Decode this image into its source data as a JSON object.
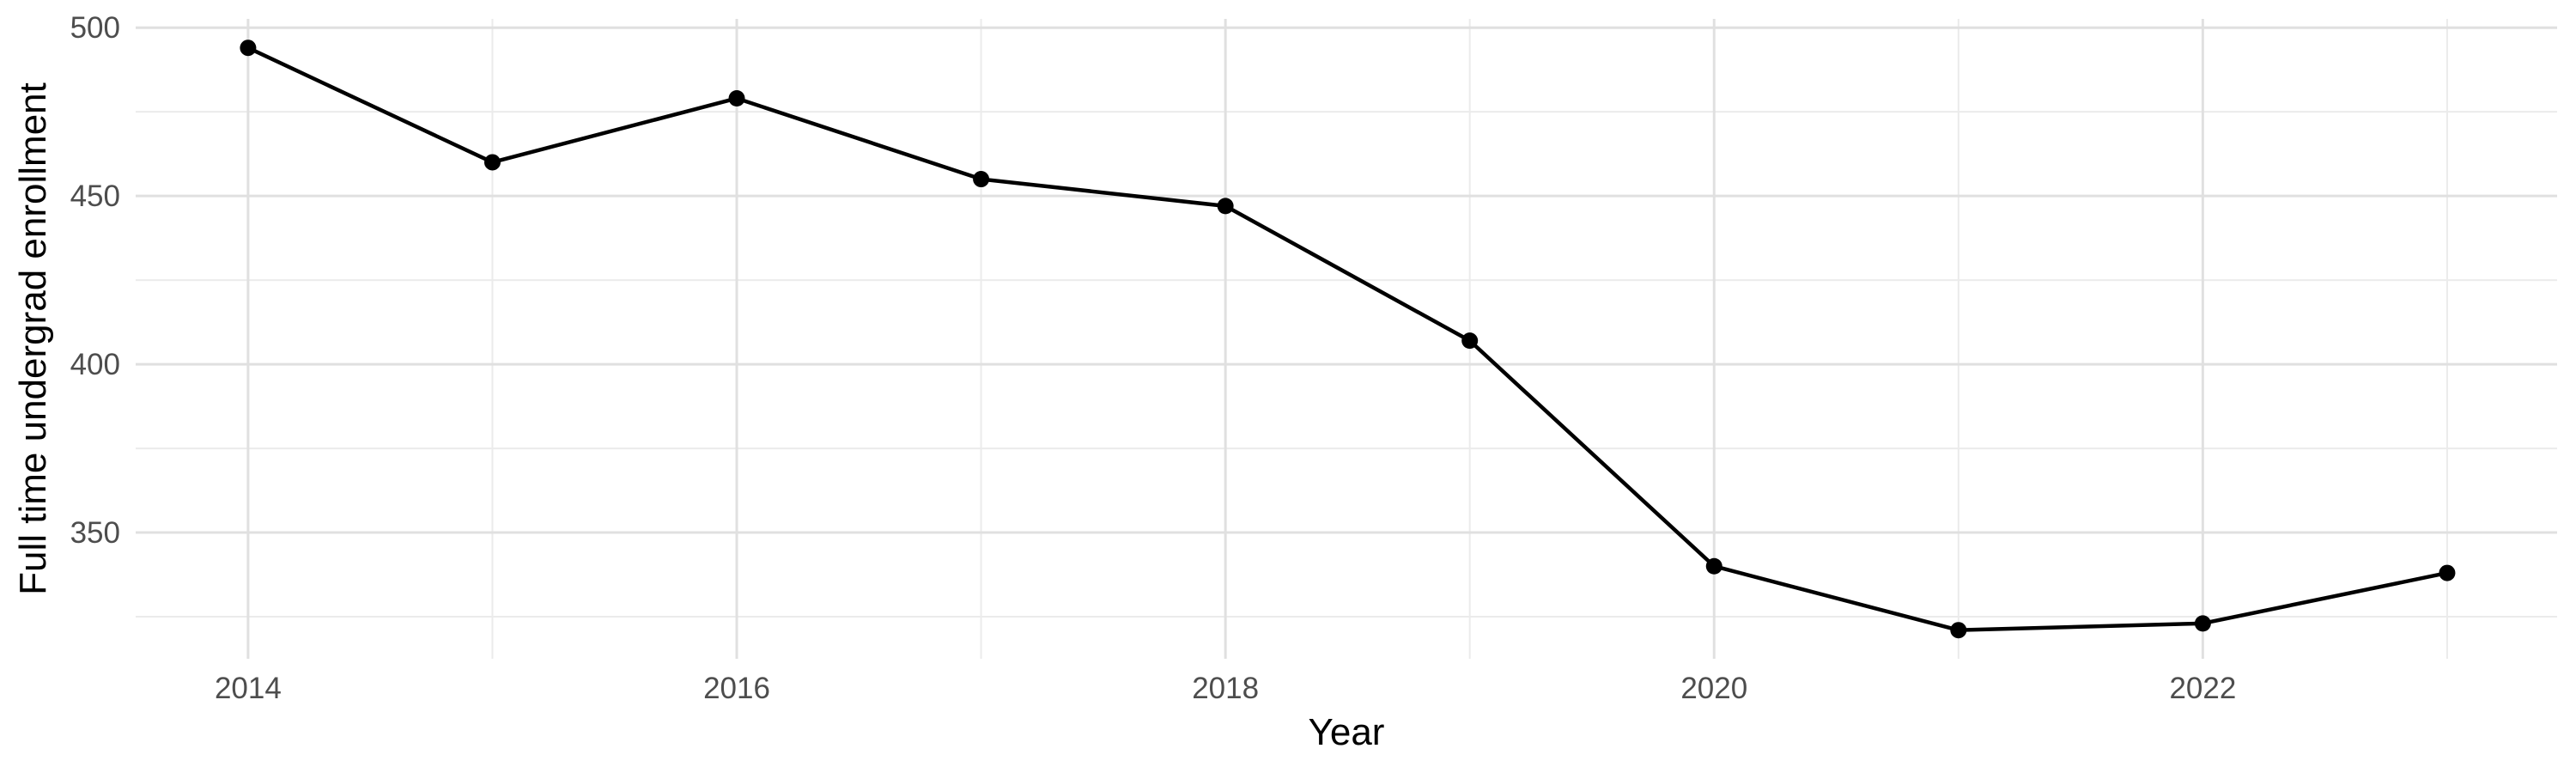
{
  "chart_data": {
    "type": "line",
    "title": "",
    "xlabel": "Year",
    "ylabel": "Full time undergrad enrollment",
    "x": [
      2014,
      2015,
      2016,
      2017,
      2018,
      2019,
      2020,
      2021,
      2022,
      2023
    ],
    "series": [
      {
        "name": "Full time undergrad enrollment",
        "values": [
          494,
          460,
          479,
          455,
          447,
          407,
          340,
          321,
          323,
          338
        ]
      }
    ],
    "x_ticks": {
      "values": [
        2014,
        2016,
        2018,
        2020,
        2022
      ],
      "labels": [
        "2014",
        "2016",
        "2018",
        "2020",
        "2022"
      ]
    },
    "x_minor_ticks": [
      2015,
      2017,
      2019,
      2021,
      2023
    ],
    "y_ticks": {
      "values": [
        500,
        450,
        400,
        350
      ],
      "labels": [
        "500",
        "450",
        "400",
        "350"
      ]
    },
    "y_minor_ticks": [
      475,
      425,
      375,
      325
    ],
    "xlim": [
      2013.54,
      2023.45
    ],
    "ylim": [
      312.5,
      502.6
    ],
    "grid": "major+minor",
    "legend": "none",
    "point_style": "filled-circle",
    "colors": {
      "line": "#000000",
      "point": "#000000",
      "grid_major": "#E0E0E0",
      "grid_minor": "#EBEBEB",
      "tick_label": "#4D4D4D",
      "axis_title": "#000000",
      "background": "#FFFFFF"
    }
  }
}
